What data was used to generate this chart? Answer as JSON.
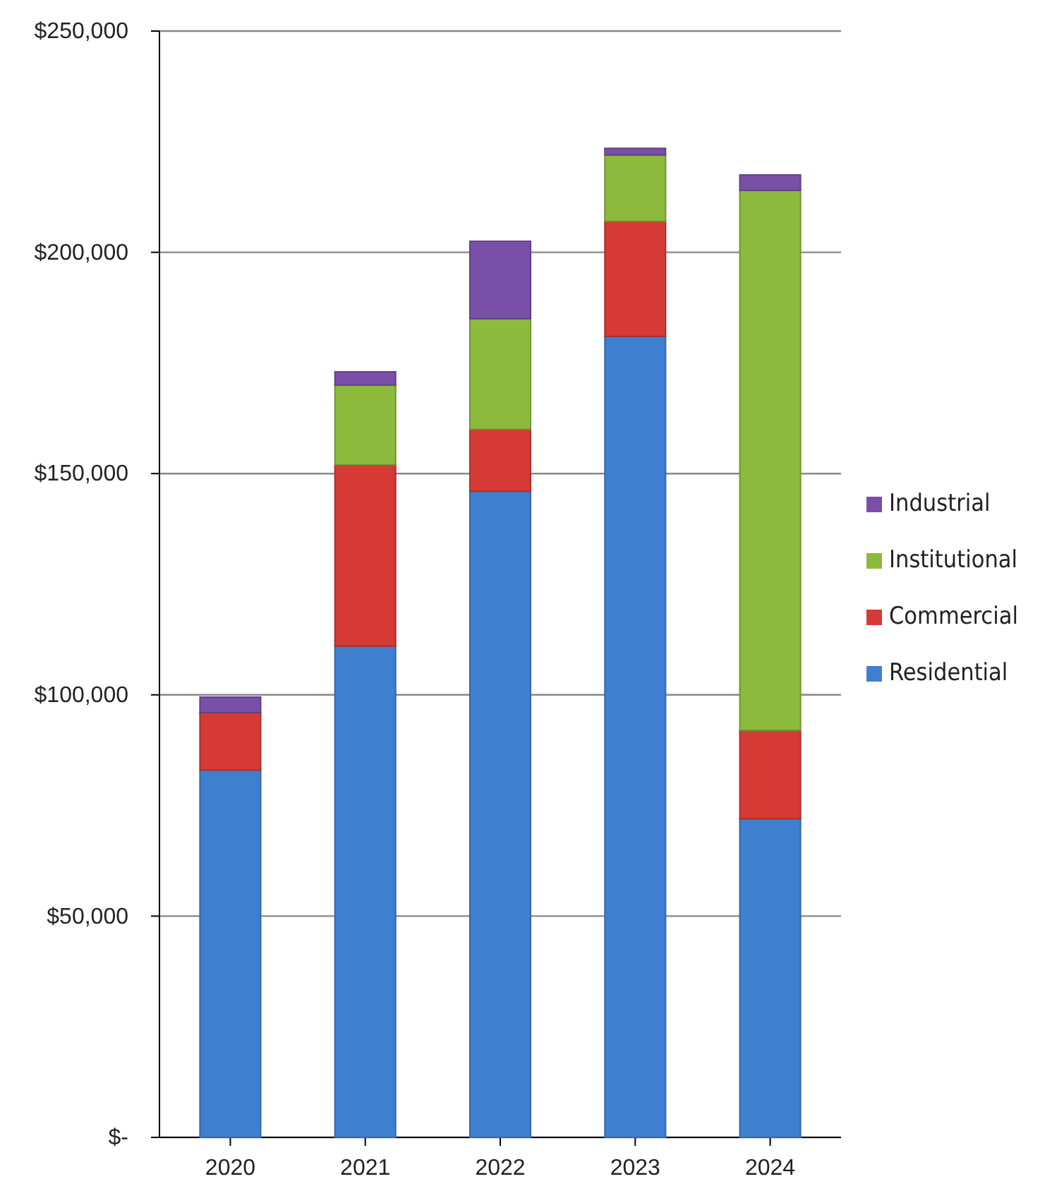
{
  "chart_data": {
    "type": "bar",
    "stacked": true,
    "categories": [
      "2020",
      "2021",
      "2022",
      "2023",
      "2024"
    ],
    "series": [
      {
        "name": "Residential",
        "color": "#3f7fd0",
        "values": [
          83000,
          111000,
          146000,
          181000,
          72000
        ]
      },
      {
        "name": "Commercial",
        "color": "#d63a35",
        "values": [
          13000,
          41000,
          14000,
          26000,
          20000
        ]
      },
      {
        "name": "Institutional",
        "color": "#8cba3c",
        "values": [
          0,
          18000,
          25000,
          15000,
          122000
        ]
      },
      {
        "name": "Industrial",
        "color": "#7a4fa8",
        "values": [
          3500,
          3000,
          17500,
          1500,
          3500
        ]
      }
    ],
    "ylim": [
      0,
      250000
    ],
    "yticks": [
      {
        "value": 0,
        "label": "$-"
      },
      {
        "value": 50000,
        "label": "$50,000"
      },
      {
        "value": 100000,
        "label": "$100,000"
      },
      {
        "value": 150000,
        "label": "$150,000"
      },
      {
        "value": 200000,
        "label": "$200,000"
      },
      {
        "value": 250000,
        "label": "$250,000"
      }
    ],
    "grid": "y",
    "legend": "right"
  }
}
